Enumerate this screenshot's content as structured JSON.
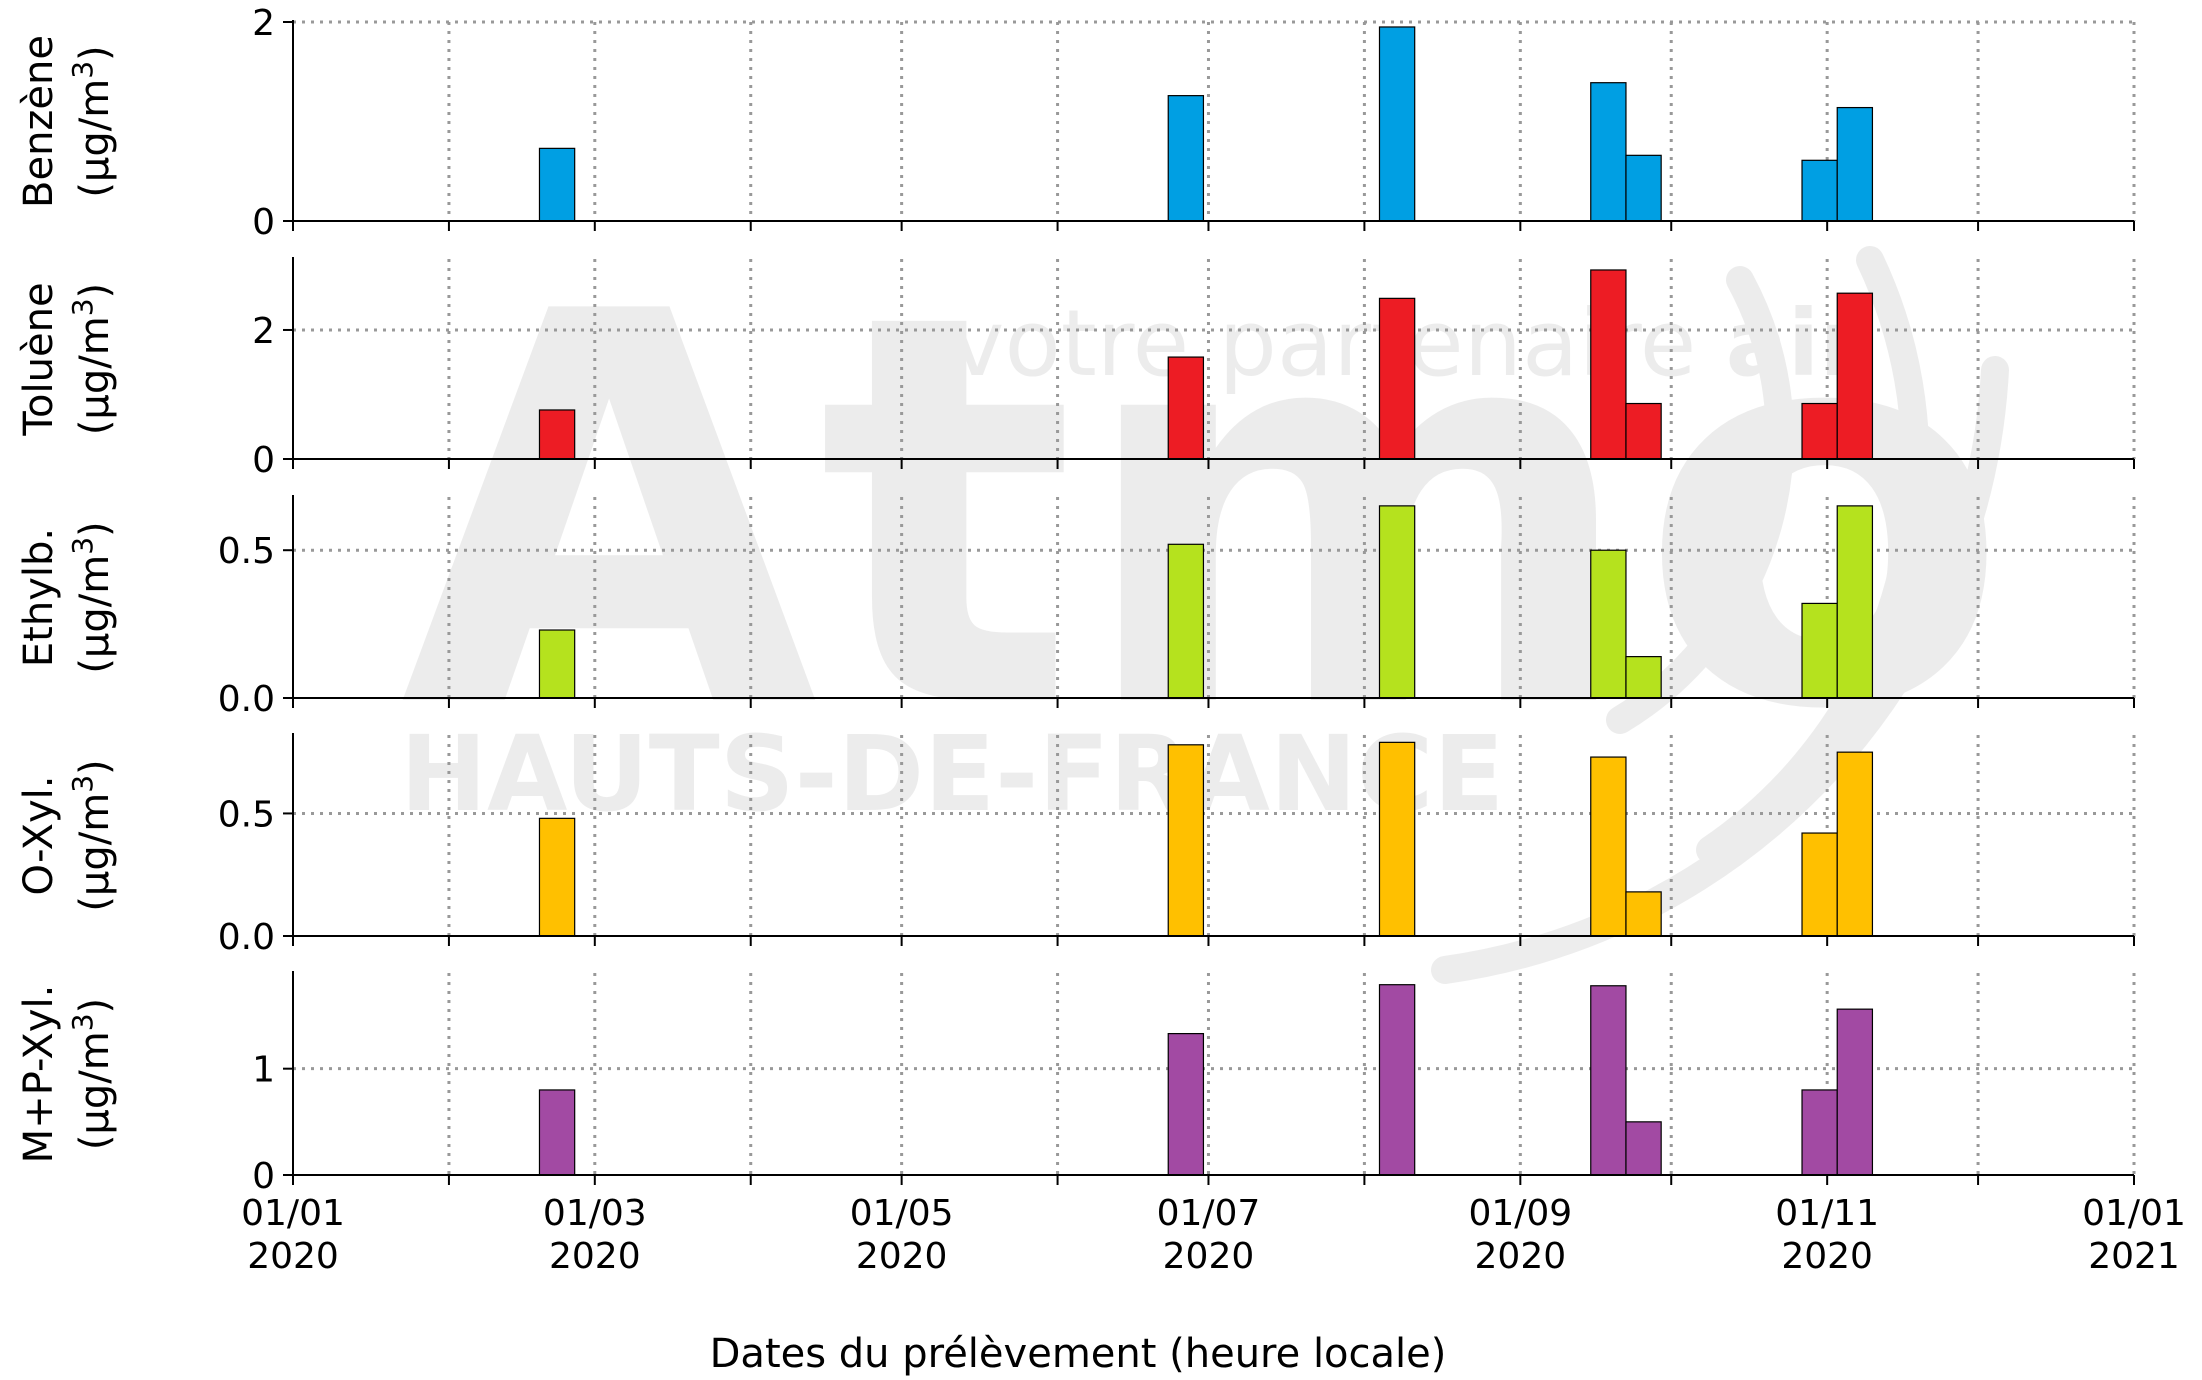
{
  "watermark": {
    "brand": "Atmo",
    "region": "HAUTS-DE-FRANCE",
    "tagline_light": "votre partenaire ",
    "tagline_bold": "air"
  },
  "chart_data": {
    "type": "bar",
    "xlabel": "Dates du prélèvement (heure locale)",
    "xlim": [
      "2020-01-01",
      "2021-01-01"
    ],
    "x_ticks": [
      {
        "date": "2020-01-01",
        "line1": "01/01",
        "line2": "2020"
      },
      {
        "date": "2020-03-01",
        "line1": "01/03",
        "line2": "2020"
      },
      {
        "date": "2020-05-01",
        "line1": "01/05",
        "line2": "2020"
      },
      {
        "date": "2020-07-01",
        "line1": "01/07",
        "line2": "2020"
      },
      {
        "date": "2020-09-01",
        "line1": "01/09",
        "line2": "2020"
      },
      {
        "date": "2020-11-01",
        "line1": "01/11",
        "line2": "2020"
      },
      {
        "date": "2021-01-01",
        "line1": "01/01",
        "line2": "2021"
      }
    ],
    "minor_ticks": [
      "2020-02-01",
      "2020-04-01",
      "2020-06-01",
      "2020-08-01",
      "2020-10-01",
      "2020-12-01"
    ],
    "grid": true,
    "bar_periods": [
      {
        "start": "2020-02-19",
        "end": "2020-02-26"
      },
      {
        "start": "2020-06-23",
        "end": "2020-06-30"
      },
      {
        "start": "2020-08-04",
        "end": "2020-08-11"
      },
      {
        "start": "2020-09-15",
        "end": "2020-09-22"
      },
      {
        "start": "2020-09-22",
        "end": "2020-09-29"
      },
      {
        "start": "2020-10-27",
        "end": "2020-11-03"
      },
      {
        "start": "2020-11-03",
        "end": "2020-11-10"
      }
    ],
    "panels": [
      {
        "name": "Benzène",
        "unit": "(µg/m³)",
        "color": "#009FE3",
        "ylim": [
          0,
          2
        ],
        "yticks": [
          {
            "v": 0,
            "t": "0"
          },
          {
            "v": 2,
            "t": "2"
          }
        ],
        "values": [
          0.73,
          1.26,
          1.95,
          1.39,
          0.66,
          0.61,
          1.14
        ]
      },
      {
        "name": "Toluène",
        "unit": "(µg/m³)",
        "color": "#ED1C24",
        "ylim": [
          0,
          3.1
        ],
        "yticks": [
          {
            "v": 0,
            "t": "0"
          },
          {
            "v": 2,
            "t": "2"
          }
        ],
        "values": [
          0.76,
          1.58,
          2.49,
          2.93,
          0.86,
          0.86,
          2.57
        ]
      },
      {
        "name": "Ethylb.",
        "unit": "(µg/m³)",
        "color": "#B5E21E",
        "ylim": [
          0,
          0.68
        ],
        "yticks": [
          {
            "v": 0,
            "t": "0.0"
          },
          {
            "v": 0.5,
            "t": "0.5"
          }
        ],
        "values": [
          0.23,
          0.52,
          0.65,
          0.5,
          0.14,
          0.32,
          0.65
        ]
      },
      {
        "name": "O-Xyl.",
        "unit": "(µg/m³)",
        "color": "#FFC000",
        "ylim": [
          0,
          0.82
        ],
        "yticks": [
          {
            "v": 0,
            "t": "0.0"
          },
          {
            "v": 0.5,
            "t": "0.5"
          }
        ],
        "values": [
          0.48,
          0.78,
          0.79,
          0.73,
          0.18,
          0.42,
          0.75
        ]
      },
      {
        "name": "M+P-Xyl.",
        "unit": "(µg/m³)",
        "color": "#A24AA3",
        "ylim": [
          0,
          1.9
        ],
        "yticks": [
          {
            "v": 0,
            "t": "0"
          },
          {
            "v": 1,
            "t": "1"
          }
        ],
        "values": [
          0.8,
          1.33,
          1.79,
          1.78,
          0.5,
          0.8,
          1.56
        ]
      }
    ]
  }
}
